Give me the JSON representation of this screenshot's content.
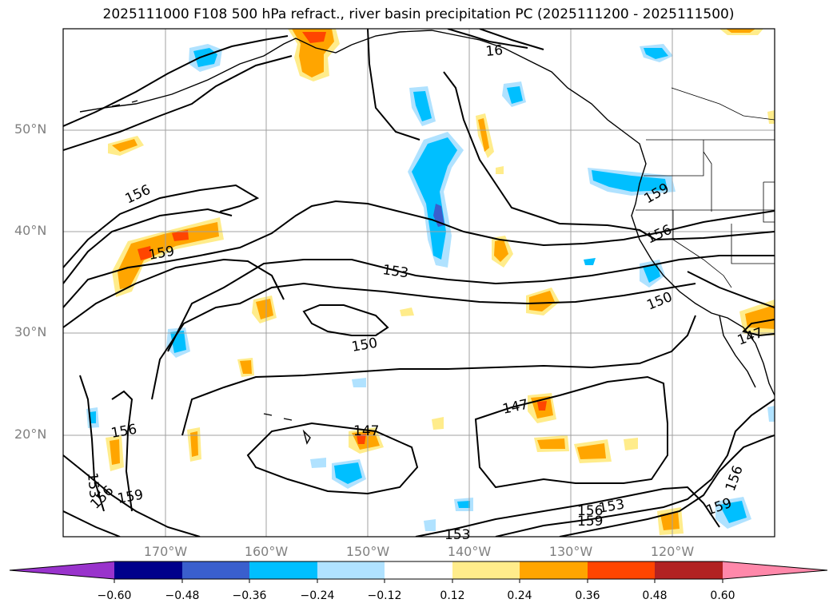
{
  "title": "2025111000 F108 500 hPa refract., river basin precipitation PC (2025111200 - 2025111500)",
  "map": {
    "lat_labels": [
      "50°N",
      "40°N",
      "30°N",
      "20°N"
    ],
    "lon_labels": [
      "170°W",
      "160°W",
      "150°W",
      "140°W",
      "130°W",
      "120°W"
    ],
    "contour_labels": [
      "156",
      "159",
      "153",
      "150",
      "147",
      "153",
      "156",
      "159",
      "147",
      "156",
      "159",
      "153",
      "153",
      "156",
      "159",
      "147",
      "156",
      "159",
      "150",
      "156",
      "159",
      "16"
    ],
    "field": "500 hPa refractivity",
    "shaded_field": "river basin precipitation PC"
  },
  "colorbar": {
    "tick_labels": [
      "−0.60",
      "−0.48",
      "−0.36",
      "−0.24",
      "−0.12",
      "0.12",
      "0.24",
      "0.36",
      "0.48",
      "0.60"
    ],
    "colors": [
      "#9933cc",
      "#00008b",
      "#3a5fcd",
      "#00bfff",
      "#b0e2ff",
      "#ffffff",
      "#ffec8b",
      "#ffa500",
      "#ff4500",
      "#b22222",
      "#ff88aa"
    ]
  }
}
